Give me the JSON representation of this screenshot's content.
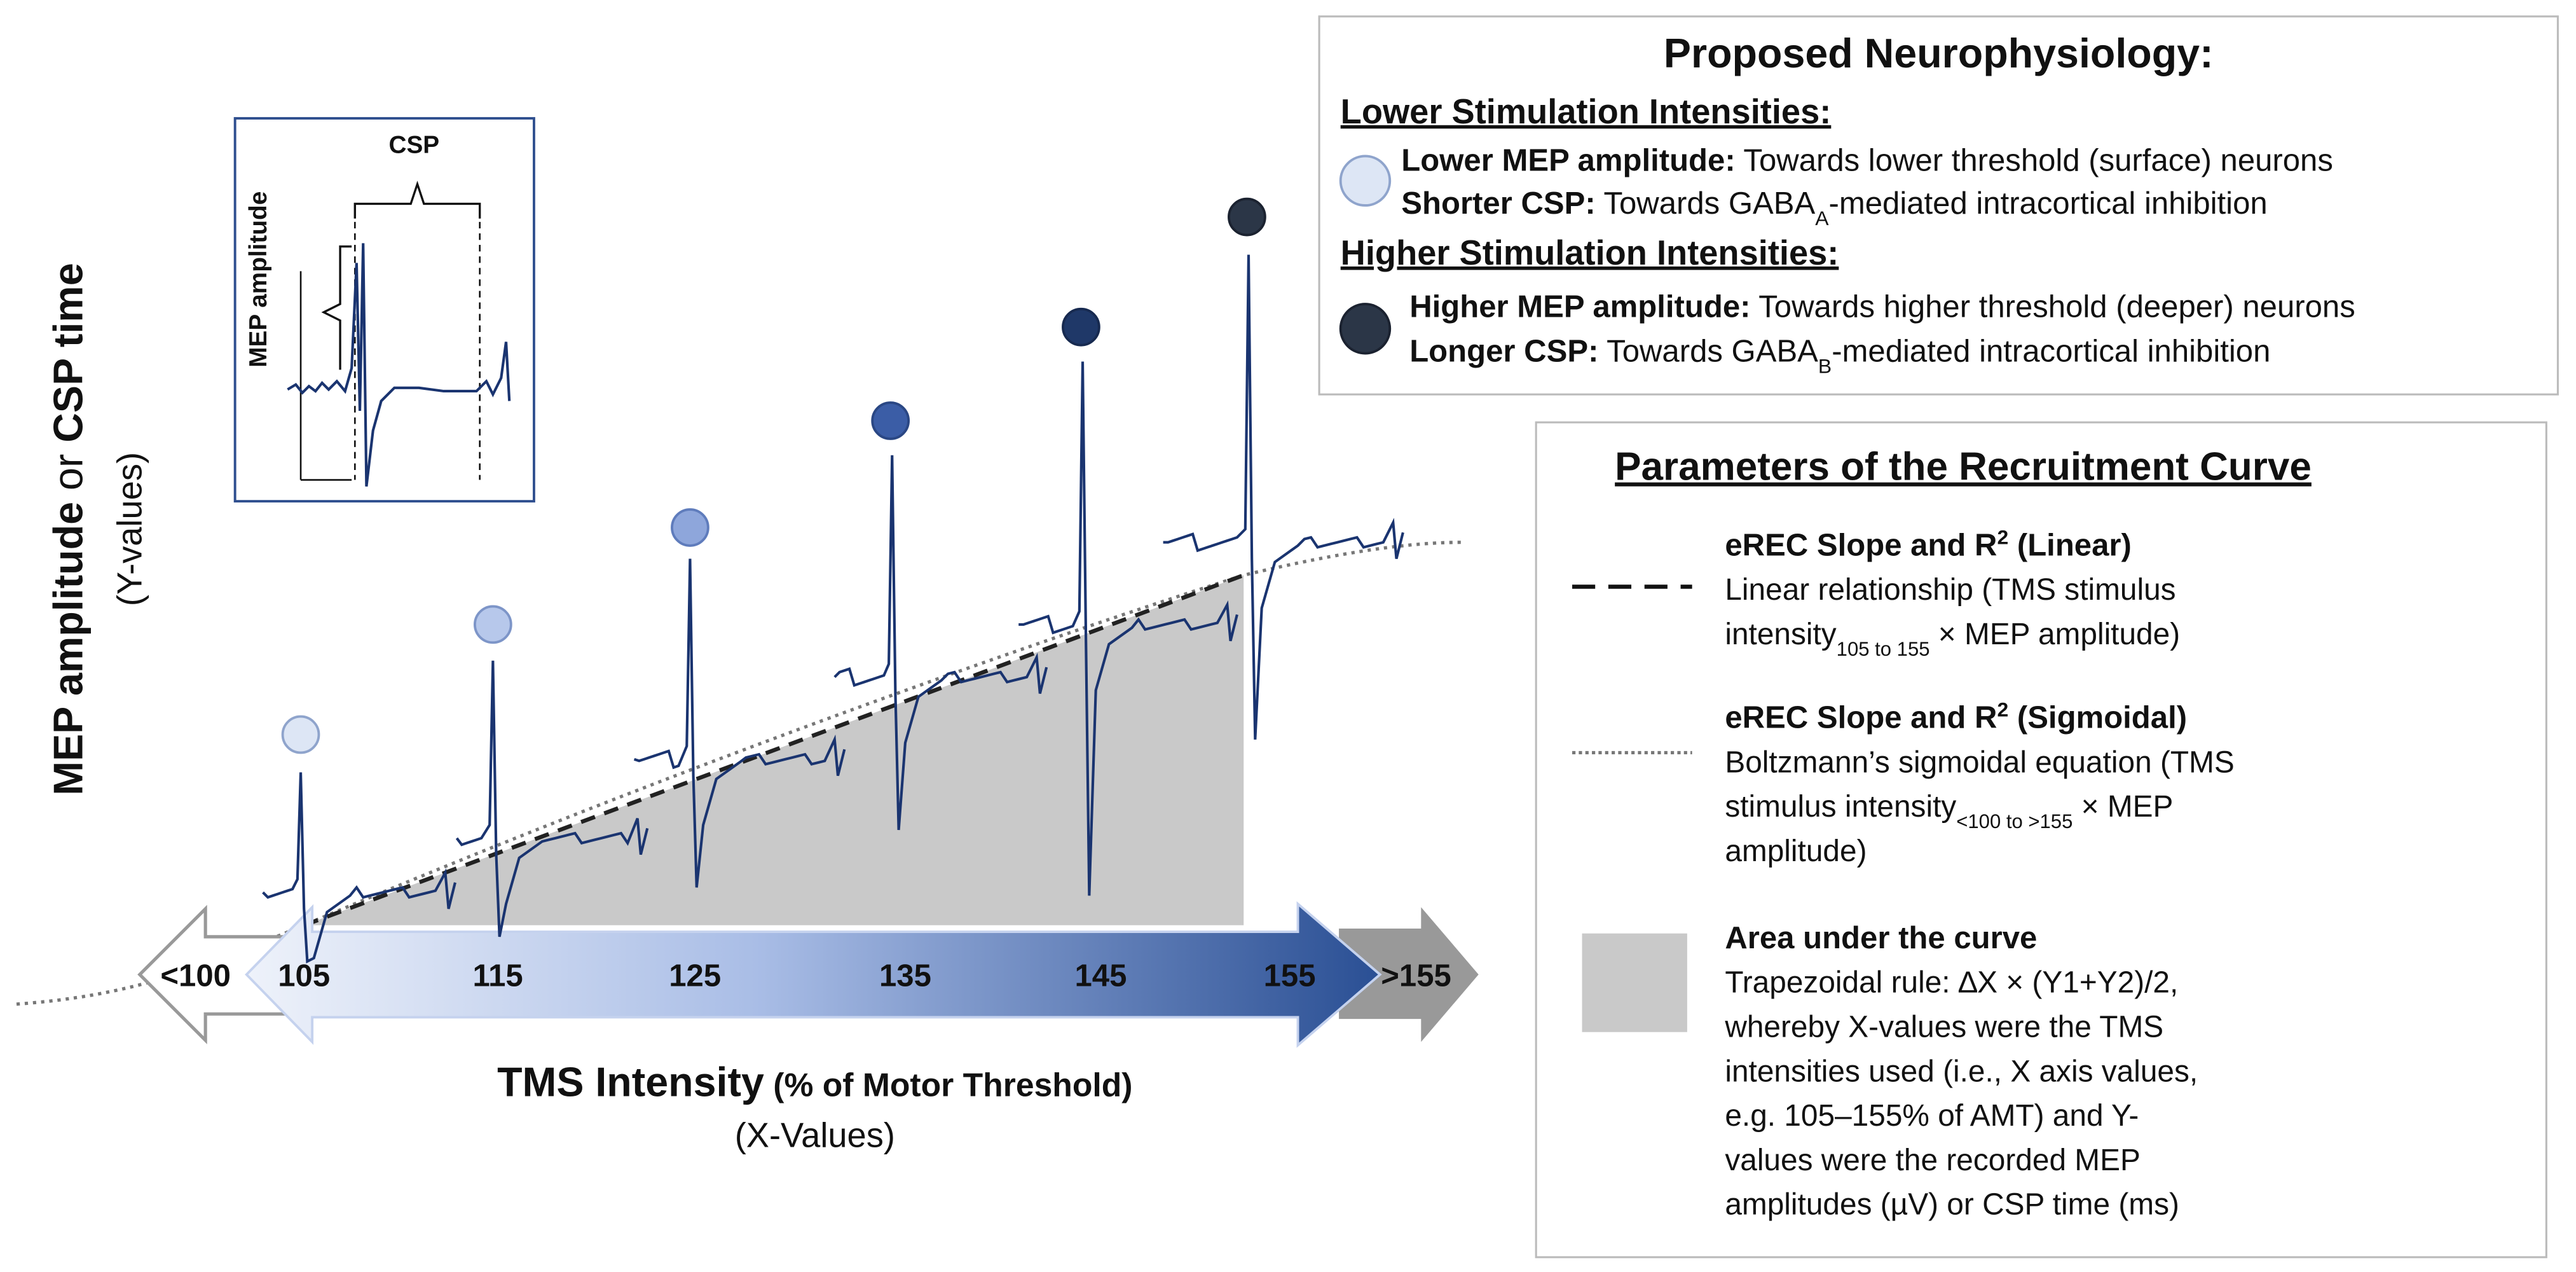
{
  "inset": {
    "csp": "CSP",
    "mep_amplitude": "MEP amplitude"
  },
  "y_axis": {
    "label_bold1": "MEP amplitude",
    "label_or": " or ",
    "label_bold2": "CSP time",
    "sub": "(Y-values)"
  },
  "x_axis": {
    "label": "TMS Intensity",
    "label_unit": " (% of Motor Threshold)",
    "sub": "(X-Values)",
    "ticks": [
      "<100",
      "105",
      "115",
      "125",
      "135",
      "145",
      "155",
      ">155"
    ]
  },
  "neurophysiology": {
    "title": "Proposed Neurophysiology:",
    "sections": [
      {
        "heading": "Lower Stimulation Intensities:",
        "items": [
          {
            "bold": "Lower MEP amplitude:",
            "text": " Towards lower threshold (surface) neurons"
          },
          {
            "bold": "Shorter CSP:",
            "text": " Towards GABA",
            "sub": "A",
            "after": "-mediated intracortical inhibition"
          }
        ]
      },
      {
        "heading": "Higher Stimulation Intensities:",
        "items": [
          {
            "bold": "Higher MEP amplitude:",
            "text": " Towards higher threshold (deeper) neurons"
          },
          {
            "bold": "Longer CSP:",
            "text": " Towards GABA",
            "sub": "B",
            "after": "-mediated intracortical inhibition"
          }
        ]
      }
    ]
  },
  "parameters": {
    "title": "Parameters of the Recruitment Curve",
    "items": [
      {
        "heading": {
          "text": "eREC Slope and R",
          "sup": "2",
          "after": " (Linear)"
        },
        "lines": [
          {
            "text": "Linear relationship (TMS stimulus"
          },
          {
            "text": "intensity",
            "sub": "105 to 155",
            "after": " × MEP amplitude)"
          }
        ]
      },
      {
        "heading": {
          "text": "eREC Slope and R",
          "sup": "2",
          "after": " (Sigmoidal)"
        },
        "lines": [
          {
            "text": "Boltzmann’s sigmoidal equation (TMS"
          },
          {
            "text": "stimulus intensity",
            "sub": "<100 to >155",
            "after": " × MEP"
          },
          {
            "text": "amplitude)"
          }
        ]
      },
      {
        "heading": {
          "text": "Area under the curve"
        },
        "lines": [
          {
            "text": "Trapezoidal rule: ∆X × (Y1+Y2)/2,"
          },
          {
            "text": "whereby X-values were the TMS"
          },
          {
            "text": "intensities used (i.e., X axis values,"
          },
          {
            "text": "e.g. 105–155% of AMT) and Y-"
          },
          {
            "text": "values were the recorded MEP"
          },
          {
            "text": "amplitudes (µV) or CSP time (ms)"
          }
        ]
      }
    ]
  }
}
